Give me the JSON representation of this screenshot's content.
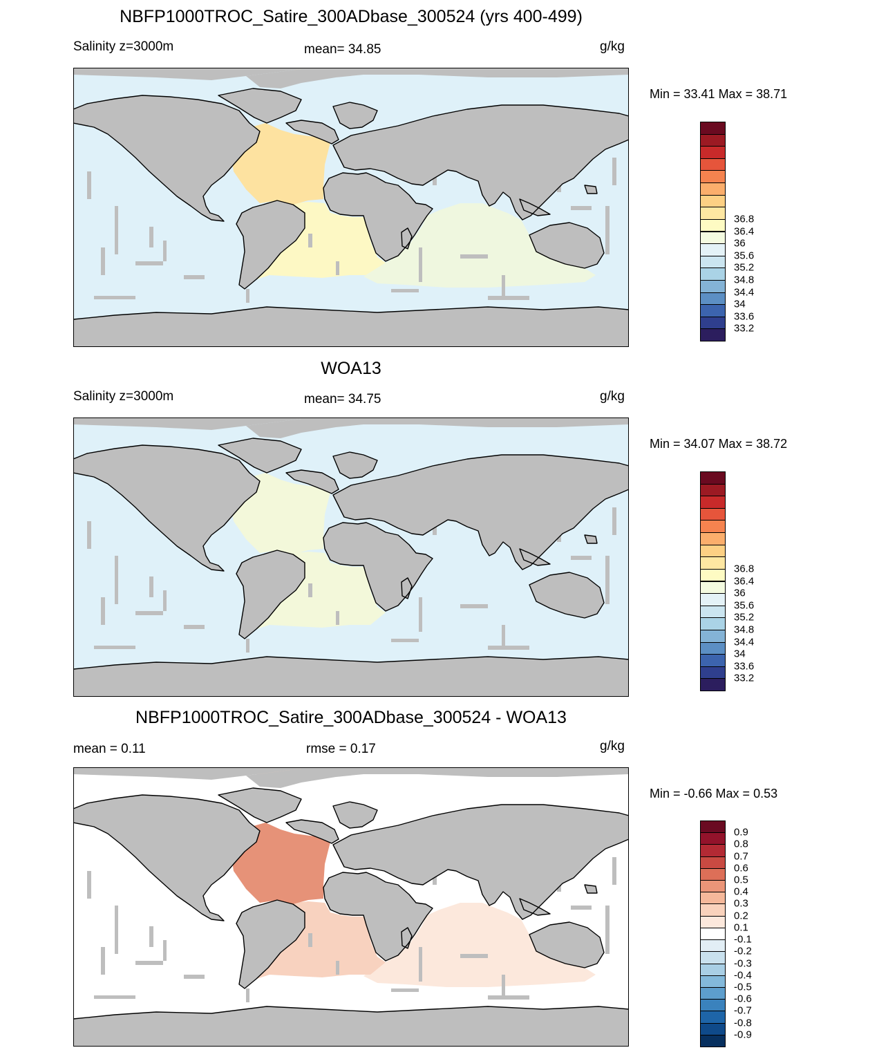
{
  "panels": [
    {
      "title": "NBFP1000TROC_Satire_300ADbase_300524 (yrs 400-499)",
      "left_label": "Salinity z=3000m",
      "center_label": "mean=  34.85",
      "units": "g/kg",
      "minmax": "Min =  33.41 Max =  38.71",
      "colorbar": {
        "colors": [
          "#2c1e5e",
          "#2f3f8e",
          "#3c64ae",
          "#5c8fc4",
          "#84b3d6",
          "#aad3e6",
          "#cbe5f0",
          "#e4f2f7",
          "#f4fbe0",
          "#fefbc3",
          "#fee7a2",
          "#fdd084",
          "#fbae6c",
          "#f5834f",
          "#e6553b",
          "#c82a2a",
          "#9c1a23",
          "#6a0a20"
        ],
        "labels": [
          "33.2",
          "33.6",
          "34",
          "34.4",
          "34.8",
          "35.2",
          "35.6",
          "36",
          "36.4",
          "36.8"
        ]
      }
    },
    {
      "title": "WOA13",
      "left_label": "Salinity z=3000m",
      "center_label": "mean=  34.75",
      "units": "g/kg",
      "minmax": "Min =  34.07 Max =  38.72",
      "colorbar": {
        "colors": [
          "#2c1e5e",
          "#2f3f8e",
          "#3c64ae",
          "#5c8fc4",
          "#84b3d6",
          "#aad3e6",
          "#cbe5f0",
          "#e4f2f7",
          "#f4fbe0",
          "#fefbc3",
          "#fee7a2",
          "#fdd084",
          "#fbae6c",
          "#f5834f",
          "#e6553b",
          "#c82a2a",
          "#9c1a23",
          "#6a0a20"
        ],
        "labels": [
          "33.2",
          "33.6",
          "34",
          "34.4",
          "34.8",
          "35.2",
          "35.6",
          "36",
          "36.4",
          "36.8"
        ]
      }
    },
    {
      "title": "NBFP1000TROC_Satire_300ADbase_300524 - WOA13",
      "left_label": "mean =   0.11",
      "center_label": "rmse =   0.17",
      "units": "g/kg",
      "minmax": "Min =  -0.66 Max =   0.53",
      "colorbar": {
        "colors": [
          "#07305f",
          "#0f4a8a",
          "#1e65a8",
          "#3a82bd",
          "#5d9ecd",
          "#83b9db",
          "#a9cfe5",
          "#c9e1ee",
          "#e2eef5",
          "#ffffff",
          "#fce8dc",
          "#f9d2bc",
          "#f5b89a",
          "#eb9578",
          "#dd6f58",
          "#c94a42",
          "#b32a34",
          "#93132b",
          "#6a0b22"
        ],
        "labels": [
          "-0.9",
          "-0.8",
          "-0.7",
          "-0.6",
          "-0.5",
          "-0.4",
          "-0.3",
          "-0.2",
          "-0.1",
          "0.1",
          "0.2",
          "0.3",
          "0.4",
          "0.5",
          "0.6",
          "0.7",
          "0.8",
          "0.9"
        ]
      }
    }
  ],
  "map_colors": {
    "land": "#bebebe",
    "coast": "#000000",
    "p1_ocean": "#dff1f9",
    "p1_atlantic_north": "#fde2a0",
    "p1_atlantic_south": "#fdf8c4",
    "p1_indian": "#eff7df",
    "p2_ocean": "#dff1f9",
    "p2_atlantic": "#f3f8da",
    "p3_ocean": "#ffffff",
    "p3_atlantic_north": "#e69278",
    "p3_atlantic_south": "#f8d2bf",
    "p3_indian": "#fce8dc"
  }
}
